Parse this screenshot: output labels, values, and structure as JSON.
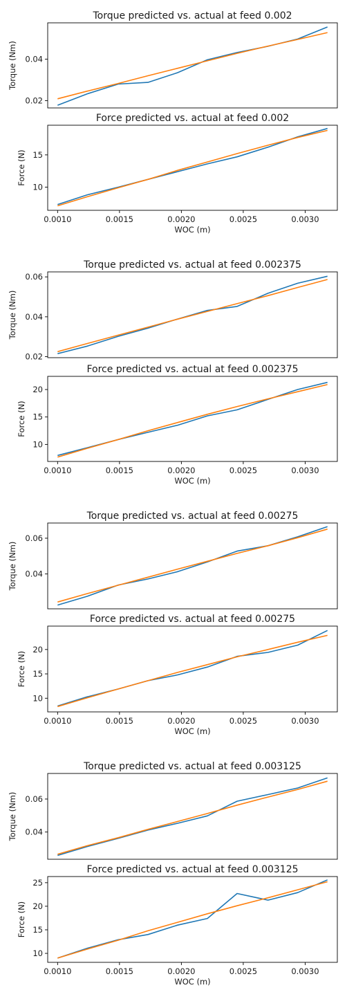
{
  "colors": {
    "actual": "#1f77b4",
    "predicted": "#ff7f0e",
    "axes": "#000000"
  },
  "chart_data": [
    {
      "type": "line",
      "title": "Torque predicted vs. actual at feed 0.002",
      "xlabel": "",
      "ylabel": "Torque (Nm)",
      "xlim": [
        0.00092,
        0.00326
      ],
      "ylim": [
        0.0165,
        0.0575
      ],
      "yticks": [
        0.02,
        0.04
      ],
      "ytick_labels": [
        "0.02",
        "0.04"
      ],
      "xticks": [],
      "xtick_labels": [],
      "x": [
        0.001,
        0.00124,
        0.00149,
        0.00173,
        0.00197,
        0.00221,
        0.00245,
        0.0027,
        0.00294,
        0.00318
      ],
      "series": [
        {
          "values": [
            0.0178,
            0.0233,
            0.028,
            0.0288,
            0.0335,
            0.0397,
            0.0432,
            0.0462,
            0.0497,
            0.0555
          ]
        },
        {
          "values": [
            0.0209,
            0.0246,
            0.0283,
            0.032,
            0.0356,
            0.0392,
            0.0428,
            0.0463,
            0.0495,
            0.0528
          ]
        }
      ]
    },
    {
      "type": "line",
      "title": "Force predicted vs. actual at feed 0.002",
      "xlabel": "WOC (m)",
      "ylabel": "Force (N)",
      "xlim": [
        0.00092,
        0.00326
      ],
      "ylim": [
        6.4,
        19.6
      ],
      "yticks": [
        10,
        15
      ],
      "ytick_labels": [
        "10",
        "15"
      ],
      "xticks": [
        0.001,
        0.0015,
        0.002,
        0.0025,
        0.003
      ],
      "xtick_labels": [
        "0.0010",
        "0.0015",
        "0.0020",
        "0.0025",
        "0.0030"
      ],
      "x": [
        0.001,
        0.00124,
        0.00149,
        0.00173,
        0.00197,
        0.00221,
        0.00245,
        0.0027,
        0.00294,
        0.00318
      ],
      "series": [
        {
          "values": [
            7.3,
            8.8,
            10.0,
            11.2,
            12.4,
            13.6,
            14.7,
            16.2,
            17.8,
            19.1
          ]
        },
        {
          "values": [
            7.1,
            8.5,
            9.9,
            11.2,
            12.6,
            13.9,
            15.2,
            16.5,
            17.7,
            18.8
          ]
        }
      ]
    },
    {
      "type": "line",
      "title": "Torque predicted vs. actual at feed 0.002375",
      "xlabel": "",
      "ylabel": "Torque (Nm)",
      "xlim": [
        0.00092,
        0.00326
      ],
      "ylim": [
        0.0195,
        0.0625
      ],
      "yticks": [
        0.02,
        0.04,
        0.06
      ],
      "ytick_labels": [
        "0.02",
        "0.04",
        "0.06"
      ],
      "xticks": [],
      "xtick_labels": [],
      "x": [
        0.001,
        0.00124,
        0.00149,
        0.00173,
        0.00197,
        0.00221,
        0.00245,
        0.0027,
        0.00294,
        0.00318
      ],
      "series": [
        {
          "values": [
            0.0215,
            0.0253,
            0.0302,
            0.0343,
            0.0389,
            0.0432,
            0.0452,
            0.0518,
            0.0568,
            0.0603
          ]
        },
        {
          "values": [
            0.0225,
            0.0266,
            0.0308,
            0.0348,
            0.0388,
            0.0427,
            0.0466,
            0.0506,
            0.0547,
            0.0587
          ]
        }
      ]
    },
    {
      "type": "line",
      "title": "Force predicted vs. actual at feed 0.002375",
      "xlabel": "WOC (m)",
      "ylabel": "Force (N)",
      "xlim": [
        0.00092,
        0.00326
      ],
      "ylim": [
        6.9,
        22.4
      ],
      "yticks": [
        10,
        15,
        20
      ],
      "ytick_labels": [
        "10",
        "15",
        "20"
      ],
      "xticks": [
        0.001,
        0.0015,
        0.002,
        0.0025,
        0.003
      ],
      "xtick_labels": [
        "0.0010",
        "0.0015",
        "0.0020",
        "0.0025",
        "0.0030"
      ],
      "x": [
        0.001,
        0.00124,
        0.00149,
        0.00173,
        0.00197,
        0.00221,
        0.00245,
        0.0027,
        0.00294,
        0.00318
      ],
      "series": [
        {
          "values": [
            8.0,
            9.4,
            10.9,
            12.2,
            13.5,
            15.2,
            16.3,
            18.2,
            20.0,
            21.3
          ]
        },
        {
          "values": [
            7.7,
            9.3,
            10.9,
            12.5,
            14.0,
            15.5,
            16.9,
            18.3,
            19.6,
            20.9
          ]
        }
      ]
    },
    {
      "type": "line",
      "title": "Torque predicted vs. actual at feed 0.00275",
      "xlabel": "",
      "ylabel": "Torque (Nm)",
      "xlim": [
        0.00092,
        0.00326
      ],
      "ylim": [
        0.0205,
        0.0685
      ],
      "yticks": [
        0.04,
        0.06
      ],
      "ytick_labels": [
        "0.04",
        "0.06"
      ],
      "xticks": [],
      "xtick_labels": [],
      "x": [
        0.001,
        0.00124,
        0.00149,
        0.00173,
        0.00197,
        0.00221,
        0.00245,
        0.0027,
        0.00294,
        0.00318
      ],
      "series": [
        {
          "values": [
            0.0226,
            0.0275,
            0.0338,
            0.0372,
            0.0413,
            0.0467,
            0.0528,
            0.0558,
            0.0608,
            0.0665
          ]
        },
        {
          "values": [
            0.0243,
            0.029,
            0.0337,
            0.0382,
            0.0427,
            0.0471,
            0.0515,
            0.0558,
            0.0603,
            0.0651
          ]
        }
      ]
    },
    {
      "type": "line",
      "title": "Force predicted vs. actual at feed 0.00275",
      "xlabel": "WOC (m)",
      "ylabel": "Force (N)",
      "xlim": [
        0.00092,
        0.00326
      ],
      "ylim": [
        7.2,
        24.8
      ],
      "yticks": [
        10,
        15,
        20
      ],
      "ytick_labels": [
        "10",
        "15",
        "20"
      ],
      "xticks": [
        0.001,
        0.0015,
        0.002,
        0.0025,
        0.003
      ],
      "xtick_labels": [
        "0.0010",
        "0.0015",
        "0.0020",
        "0.0025",
        "0.0030"
      ],
      "x": [
        0.001,
        0.00124,
        0.00149,
        0.00173,
        0.00197,
        0.00221,
        0.00245,
        0.0027,
        0.00294,
        0.00318
      ],
      "series": [
        {
          "values": [
            8.4,
            10.3,
            11.9,
            13.6,
            14.8,
            16.4,
            18.6,
            19.4,
            20.9,
            23.9
          ]
        },
        {
          "values": [
            8.3,
            10.1,
            11.9,
            13.6,
            15.3,
            16.9,
            18.5,
            20.0,
            21.5,
            22.9
          ]
        }
      ]
    },
    {
      "type": "line",
      "title": "Torque predicted vs. actual at feed 0.003125",
      "xlabel": "",
      "ylabel": "Torque (Nm)",
      "xlim": [
        0.00092,
        0.00326
      ],
      "ylim": [
        0.0235,
        0.0755
      ],
      "yticks": [
        0.04,
        0.06
      ],
      "ytick_labels": [
        "0.04",
        "0.06"
      ],
      "xticks": [],
      "xtick_labels": [],
      "x": [
        0.001,
        0.00124,
        0.00149,
        0.00173,
        0.00197,
        0.00221,
        0.00245,
        0.0027,
        0.00294,
        0.00318
      ],
      "series": [
        {
          "values": [
            0.0258,
            0.0312,
            0.0362,
            0.0412,
            0.0453,
            0.0498,
            0.0587,
            0.0627,
            0.0667,
            0.0728
          ]
        },
        {
          "values": [
            0.0265,
            0.0317,
            0.0366,
            0.0416,
            0.0464,
            0.0512,
            0.0563,
            0.0612,
            0.0658,
            0.0708
          ]
        }
      ]
    },
    {
      "type": "line",
      "title": "Force predicted vs. actual at feed 0.003125",
      "xlabel": "WOC (m)",
      "ylabel": "Force (N)",
      "xlim": [
        0.00092,
        0.00326
      ],
      "ylim": [
        8.1,
        26.3
      ],
      "yticks": [
        10,
        15,
        20,
        25
      ],
      "ytick_labels": [
        "10",
        "15",
        "20",
        "25"
      ],
      "xticks": [
        0.001,
        0.0015,
        0.002,
        0.0025,
        0.003
      ],
      "xtick_labels": [
        "0.0010",
        "0.0015",
        "0.0020",
        "0.0025",
        "0.0030"
      ],
      "x": [
        0.001,
        0.00124,
        0.00149,
        0.00173,
        0.00197,
        0.00221,
        0.00245,
        0.0027,
        0.00294,
        0.00318
      ],
      "series": [
        {
          "values": [
            9.0,
            11.1,
            12.9,
            14.0,
            16.0,
            17.4,
            22.7,
            21.3,
            22.9,
            25.6
          ]
        },
        {
          "values": [
            9.0,
            10.9,
            12.8,
            14.8,
            16.6,
            18.4,
            20.1,
            21.8,
            23.5,
            25.2
          ]
        }
      ]
    }
  ]
}
